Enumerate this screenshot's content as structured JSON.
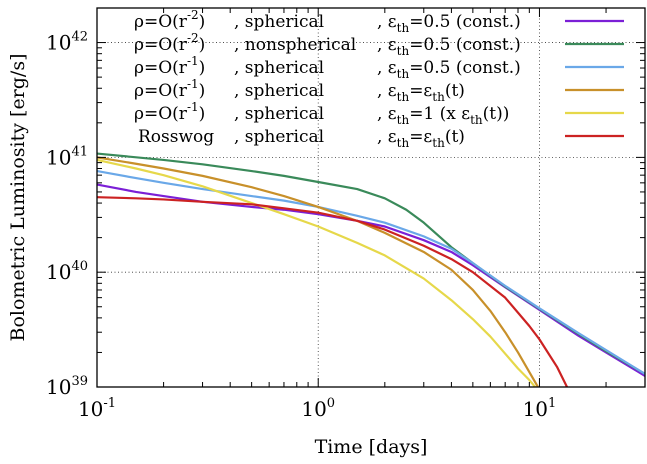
{
  "chart_data": {
    "type": "line",
    "title": "",
    "xlabel": "Time [days]",
    "ylabel": "Bolometric Luminosity [erg/s]",
    "xscale": "log",
    "yscale": "log",
    "xlim": [
      0.1,
      30
    ],
    "ylim": [
      1e+39,
      2e+42
    ],
    "grid": "dotted, at major decades",
    "legend_position": "top",
    "x_ticks": [
      {
        "value": 0.1,
        "base": "10",
        "exp": "-1"
      },
      {
        "value": 1,
        "base": "10",
        "exp": "0"
      },
      {
        "value": 10,
        "base": "10",
        "exp": "1"
      }
    ],
    "y_ticks": [
      {
        "value": 1e+39,
        "base": "10",
        "exp": "39"
      },
      {
        "value": 1e+40,
        "base": "10",
        "exp": "40"
      },
      {
        "value": 1e+41,
        "base": "10",
        "exp": "41"
      },
      {
        "value": 1e+42,
        "base": "10",
        "exp": "42"
      }
    ],
    "series": [
      {
        "name": "ρ=O(r⁻²) , spherical , ε_th=0.5 (const.)",
        "label": {
          "density": "ρ=O(r",
          "exp": "-2",
          "close": ")",
          "geometry": ", spherical",
          "eps_prefix": ", ε",
          "eps_sub": "th",
          "eps_rest": "=0.5 (const.)"
        },
        "color": "#7b1fd6",
        "x": [
          0.1,
          0.15,
          0.2,
          0.3,
          0.5,
          0.7,
          1,
          1.5,
          2,
          3,
          4,
          5,
          7,
          10,
          15,
          20,
          30
        ],
        "y": [
          5.8e+40,
          5e+40,
          4.6e+40,
          4.1e+40,
          3.7e+40,
          3.5e+40,
          3.2e+40,
          2.8e+40,
          2.5e+40,
          1.9e+40,
          1.5e+40,
          1.15e+40,
          7.4e+39,
          4.7e+39,
          2.8e+39,
          2e+39,
          1.25e+39
        ]
      },
      {
        "name": "ρ=O(r⁻²) , nonspherical , ε_th=0.5 (const.)",
        "label": {
          "density": "ρ=O(r",
          "exp": "-2",
          "close": ")",
          "geometry": ", nonspherical",
          "eps_prefix": ", ε",
          "eps_sub": "th",
          "eps_rest": "=0.5 (const.)"
        },
        "color": "#3a8a5a",
        "x": [
          0.1,
          0.2,
          0.3,
          0.5,
          0.7,
          1,
          1.5,
          2,
          2.5,
          3,
          4,
          5,
          7,
          10,
          15,
          20,
          30
        ],
        "y": [
          1.08e+41,
          9.5e+40,
          8.7e+40,
          7.6e+40,
          6.9e+40,
          6.1e+40,
          5.3e+40,
          4.4e+40,
          3.5e+40,
          2.7e+40,
          1.65e+40,
          1.2e+40,
          7.5e+39,
          4.8e+39,
          2.9e+39,
          2.05e+39,
          1.3e+39
        ]
      },
      {
        "name": "ρ=O(r⁻¹) , spherical , ε_th=0.5 (const.)",
        "label": {
          "density": "ρ=O(r",
          "exp": "-1",
          "close": ")",
          "geometry": ", spherical",
          "eps_prefix": ", ε",
          "eps_sub": "th",
          "eps_rest": "=0.5 (const.)"
        },
        "color": "#6aa8e8",
        "x": [
          0.1,
          0.15,
          0.2,
          0.3,
          0.5,
          0.7,
          1,
          1.5,
          2,
          3,
          4,
          5,
          7,
          10,
          15,
          20,
          30
        ],
        "y": [
          7.6e+40,
          6.6e+40,
          6e+40,
          5.3e+40,
          4.6e+40,
          4.2e+40,
          3.7e+40,
          3.1e+40,
          2.7e+40,
          2.05e+40,
          1.6e+40,
          1.2e+40,
          7.6e+39,
          4.85e+39,
          2.95e+39,
          2.1e+39,
          1.3e+39
        ]
      },
      {
        "name": "ρ=O(r⁻¹) , spherical , ε_th=ε_th(t)",
        "label": {
          "density": "ρ=O(r",
          "exp": "-1",
          "close": ")",
          "geometry": ", spherical",
          "eps_prefix": ", ε",
          "eps_sub": "th",
          "eps_rest": "=ε",
          "eps_sub2": "th",
          "eps_tail": "(t)"
        },
        "color": "#c8902a",
        "x": [
          0.1,
          0.15,
          0.2,
          0.3,
          0.5,
          0.7,
          1,
          1.5,
          2,
          3,
          4,
          5,
          6,
          7,
          8,
          9,
          10
        ],
        "y": [
          1e+41,
          8.8e+40,
          8e+40,
          6.9e+40,
          5.5e+40,
          4.6e+40,
          3.7e+40,
          2.8e+40,
          2.2e+40,
          1.5e+40,
          1.05e+40,
          7e+39,
          4.6e+39,
          3e+39,
          2e+39,
          1.35e+39,
          9.5e+38
        ]
      },
      {
        "name": "ρ=O(r⁻¹) , spherical , ε_th=1 (x ε_th(t))",
        "label": {
          "density": "ρ=O(r",
          "exp": "-1",
          "close": ")",
          "geometry": ", spherical",
          "eps_prefix": ", ε",
          "eps_sub": "th",
          "eps_rest": "=1 (x ε",
          "eps_sub2": "th",
          "eps_tail": "(t))"
        },
        "color": "#e6d84a",
        "x": [
          0.1,
          0.15,
          0.2,
          0.3,
          0.5,
          0.7,
          1,
          1.5,
          2,
          3,
          4,
          5,
          6,
          7,
          8,
          9,
          10
        ],
        "y": [
          9.5e+40,
          8e+40,
          7e+40,
          5.6e+40,
          4e+40,
          3.2e+40,
          2.5e+40,
          1.8e+40,
          1.4e+40,
          8.8e+39,
          5.7e+39,
          3.9e+39,
          2.75e+39,
          1.95e+39,
          1.45e+39,
          1.15e+39,
          9e+38
        ]
      },
      {
        "name": "Rosswog , spherical , ε_th=ε_th(t)",
        "label": {
          "density": "Rosswog",
          "exp": "",
          "close": "",
          "geometry": ", spherical",
          "eps_prefix": ", ε",
          "eps_sub": "th",
          "eps_rest": "=ε",
          "eps_sub2": "th",
          "eps_tail": "(t)"
        },
        "color": "#cc2222",
        "x": [
          0.1,
          0.15,
          0.2,
          0.3,
          0.5,
          0.7,
          1,
          1.5,
          2,
          3,
          4,
          5,
          7,
          9,
          10,
          12,
          13.5
        ],
        "y": [
          4.5e+40,
          4.4e+40,
          4.3e+40,
          4.1e+40,
          3.9e+40,
          3.6e+40,
          3.3e+40,
          2.8e+40,
          2.35e+40,
          1.7e+40,
          1.3e+40,
          1e+40,
          6e+39,
          3.4e+39,
          2.6e+39,
          1.5e+39,
          9.5e+38
        ]
      }
    ]
  }
}
